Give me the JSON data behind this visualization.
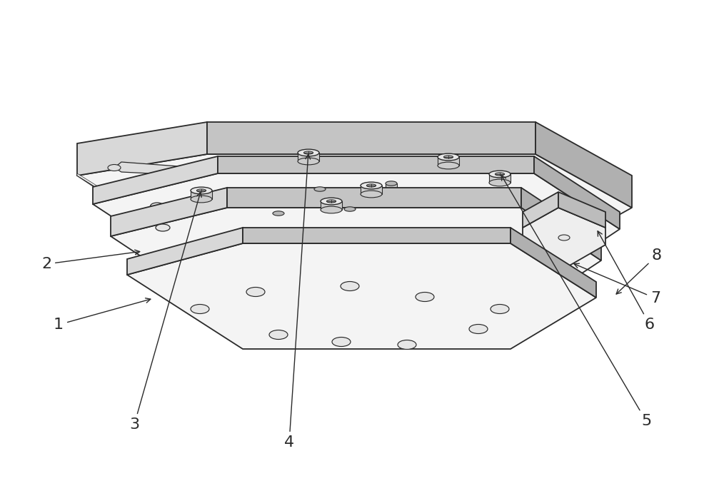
{
  "bg_color": "#ffffff",
  "lc": "#2a2a2a",
  "face_top": "#f4f4f4",
  "face_left": "#d8d8d8",
  "face_right": "#c4c4c4",
  "face_far": "#b0b0b0",
  "bolt_top": "#e8e8e8",
  "bolt_body": "#cccccc",
  "bolt_inner": "#aaaaaa",
  "hole_fill": "#e6e6e6",
  "slot_fill": "#dedede",
  "clamp_top": "#eeeeee",
  "clamp_left": "#d0d0d0",
  "clamp_right": "#bcbcbc",
  "label_fontsize": 16
}
